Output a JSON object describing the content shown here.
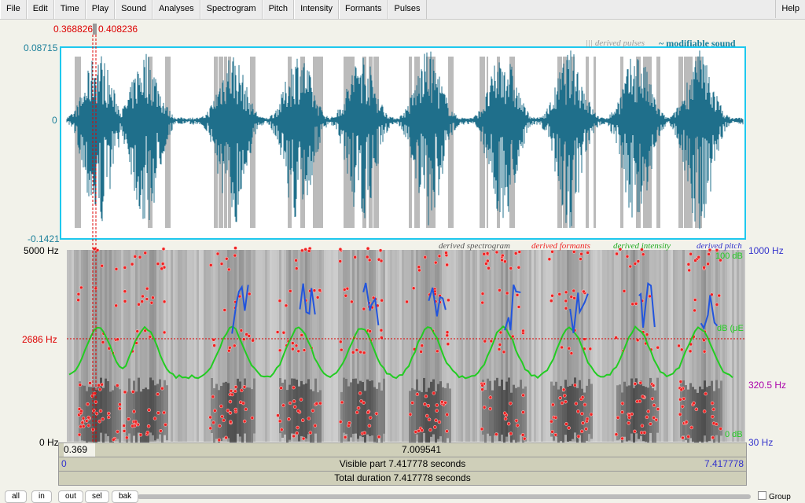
{
  "menu": [
    "File",
    "Edit",
    "Time",
    "Play",
    "Sound",
    "Analyses",
    "Spectrogram",
    "Pitch",
    "Intensity",
    "Formants",
    "Pulses"
  ],
  "help": "Help",
  "selection": {
    "start": "0.368826",
    "end": "0.408236"
  },
  "waveform": {
    "top": "0.08715",
    "zero": "0",
    "bottom": "-0.1421",
    "legend_pulses": "||| derived pulses",
    "legend_sound": "~ modifiable sound"
  },
  "spectrogram": {
    "legend": [
      "derived spectrogram",
      "derived formants",
      "derived intensity",
      "derived pitch"
    ],
    "left": {
      "top": "5000 Hz",
      "cursor": "2686 Hz",
      "bottom": "0 Hz"
    },
    "right": {
      "pitch_top": "1000 Hz",
      "intensity_top": "100 dB",
      "intensity_mid": "dB (μE",
      "pitch_mid": "320.5 Hz",
      "intensity_bottom": "0 dB",
      "pitch_bottom": "30 Hz"
    }
  },
  "bars": {
    "sel_start": "0.369",
    "sel_rest": "7.009541",
    "visible_start": "0",
    "visible": "Visible part 7.417778 seconds",
    "visible_end": "7.417778",
    "total": "Total duration 7.417778 seconds"
  },
  "buttons": [
    "all",
    "in",
    "out",
    "sel",
    "bak"
  ],
  "group": "Group"
}
